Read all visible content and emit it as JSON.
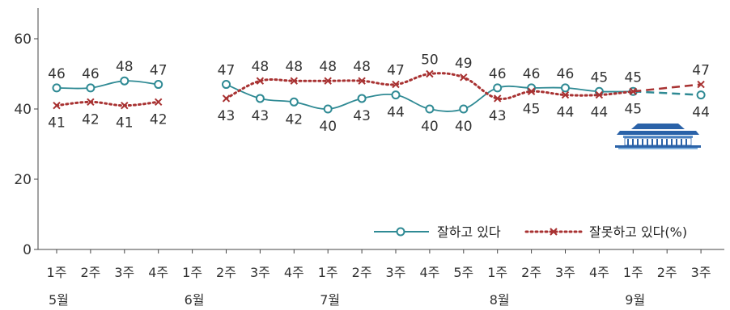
{
  "chart_data": {
    "type": "line",
    "y_axis": {
      "ylim": [
        0,
        60
      ],
      "ticks": [
        0,
        20,
        40,
        60
      ]
    },
    "x": [
      {
        "week": "1주",
        "month": "5월"
      },
      {
        "week": "2주",
        "month": ""
      },
      {
        "week": "3주",
        "month": ""
      },
      {
        "week": "4주",
        "month": ""
      },
      {
        "week": "1주",
        "month": "6월"
      },
      {
        "week": "2주",
        "month": ""
      },
      {
        "week": "3주",
        "month": ""
      },
      {
        "week": "4주",
        "month": ""
      },
      {
        "week": "1주",
        "month": "7월"
      },
      {
        "week": "2주",
        "month": ""
      },
      {
        "week": "3주",
        "month": ""
      },
      {
        "week": "4주",
        "month": ""
      },
      {
        "week": "5주",
        "month": ""
      },
      {
        "week": "1주",
        "month": "8월"
      },
      {
        "week": "2주",
        "month": ""
      },
      {
        "week": "3주",
        "month": ""
      },
      {
        "week": "4주",
        "month": ""
      },
      {
        "week": "1주",
        "month": "9월"
      },
      {
        "week": "2주",
        "month": ""
      },
      {
        "week": "3주",
        "month": ""
      }
    ],
    "series": [
      {
        "name": "잘하고 있다",
        "color": "#2f8a94",
        "marker": "circle",
        "values": [
          46,
          46,
          48,
          47,
          null,
          47,
          43,
          42,
          40,
          43,
          44,
          40,
          40,
          46,
          46,
          46,
          45,
          45,
          null,
          44
        ]
      },
      {
        "name": "잘못하고 있다(%)",
        "color": "#a83232",
        "marker": "x",
        "values": [
          41,
          42,
          41,
          42,
          null,
          43,
          48,
          48,
          48,
          48,
          47,
          50,
          49,
          43,
          45,
          44,
          44,
          45,
          null,
          47
        ]
      }
    ],
    "projection": {
      "from_index": 17,
      "to_index": 19,
      "style": "dashed"
    },
    "legend": {
      "placement": "bottom-right"
    },
    "grid": false
  },
  "decoration": {
    "building_icon": "blue-house-icon"
  }
}
